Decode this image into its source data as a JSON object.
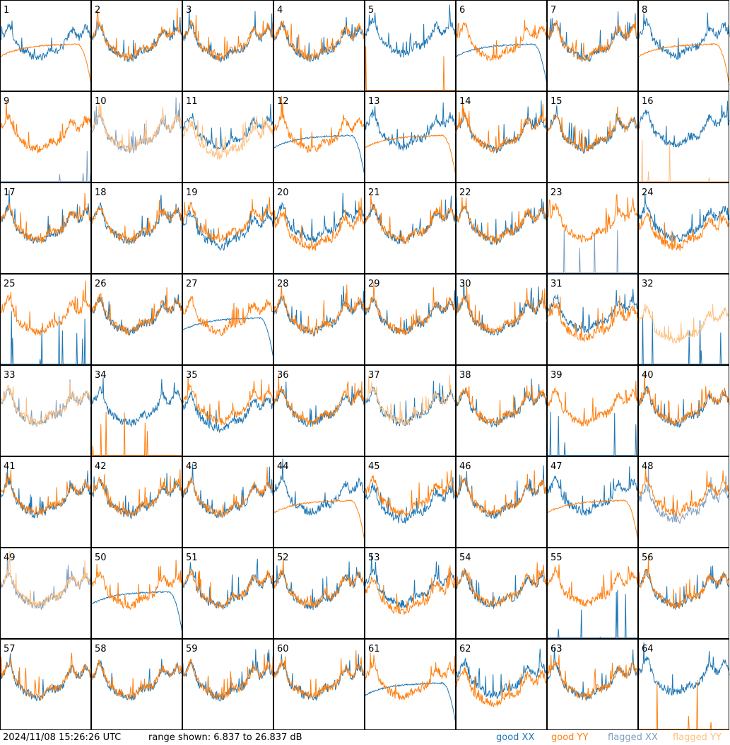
{
  "footer": {
    "timestamp": "2024/11/08 15:26:26 UTC",
    "range_text": "range shown: 6.837 to 26.837 dB",
    "legend": [
      {
        "label": "good XX",
        "color": "#1f77b4"
      },
      {
        "label": "good YY",
        "color": "#ff7f0e"
      },
      {
        "label": "flagged XX",
        "color": "#7f9fbf"
      },
      {
        "label": "flagged YY",
        "color": "#ffbf7f"
      }
    ]
  },
  "chart_data": {
    "type": "line",
    "title": "",
    "ylim": [
      6.837,
      26.837
    ],
    "yunit": "dB",
    "grid": "8x8 small multiples",
    "colors": {
      "good_xx": "#1f77b4",
      "good_yy": "#ff7f0e",
      "flagged_xx": "#7f9fbf",
      "flagged_yy": "#ffbf7f"
    },
    "panels": [
      {
        "label": "1",
        "xx": "good",
        "yy": "good",
        "shape": "xx_noisy_yy_smooth_low"
      },
      {
        "label": "2",
        "xx": "good",
        "yy": "good",
        "shape": "normal"
      },
      {
        "label": "3",
        "xx": "good",
        "yy": "good",
        "shape": "normal"
      },
      {
        "label": "4",
        "xx": "good",
        "yy": "good",
        "shape": "normal"
      },
      {
        "label": "5",
        "xx": "good",
        "yy": "good",
        "shape": "yy_spikes"
      },
      {
        "label": "6",
        "xx": "good",
        "yy": "good",
        "shape": "xx_hump_drop"
      },
      {
        "label": "7",
        "xx": "good",
        "yy": "good",
        "shape": "normal"
      },
      {
        "label": "8",
        "xx": "good",
        "yy": "good",
        "shape": "yy_hump_drop"
      },
      {
        "label": "9",
        "xx": "flagged",
        "yy": "good",
        "shape": "xx_spikes"
      },
      {
        "label": "10",
        "xx": "flagged",
        "yy": "flagged",
        "shape": "normal"
      },
      {
        "label": "11",
        "xx": "good",
        "yy": "flagged",
        "shape": "yy_lower"
      },
      {
        "label": "12",
        "xx": "good",
        "yy": "good",
        "shape": "xx_hump_drop"
      },
      {
        "label": "13",
        "xx": "good",
        "yy": "good",
        "shape": "yy_hump_drop"
      },
      {
        "label": "14",
        "xx": "good",
        "yy": "good",
        "shape": "normal"
      },
      {
        "label": "15",
        "xx": "good",
        "yy": "good",
        "shape": "normal"
      },
      {
        "label": "16",
        "xx": "good",
        "yy": "flagged",
        "shape": "yy_spikes"
      },
      {
        "label": "17",
        "xx": "good",
        "yy": "good",
        "shape": "normal"
      },
      {
        "label": "18",
        "xx": "good",
        "yy": "good",
        "shape": "normal"
      },
      {
        "label": "19",
        "xx": "good",
        "yy": "good",
        "shape": "xx_lower"
      },
      {
        "label": "20",
        "xx": "good",
        "yy": "good",
        "shape": "yy_lower"
      },
      {
        "label": "21",
        "xx": "good",
        "yy": "good",
        "shape": "normal"
      },
      {
        "label": "22",
        "xx": "good",
        "yy": "good",
        "shape": "normal"
      },
      {
        "label": "23",
        "xx": "flagged",
        "yy": "good",
        "shape": "xx_spikes_hump"
      },
      {
        "label": "24",
        "xx": "good",
        "yy": "good",
        "shape": "yy_lower"
      },
      {
        "label": "25",
        "xx": "good",
        "yy": "good",
        "shape": "xx_spikes"
      },
      {
        "label": "26",
        "xx": "good",
        "yy": "good",
        "shape": "normal"
      },
      {
        "label": "27",
        "xx": "good",
        "yy": "good",
        "shape": "xx_hump_drop"
      },
      {
        "label": "28",
        "xx": "good",
        "yy": "good",
        "shape": "normal"
      },
      {
        "label": "29",
        "xx": "good",
        "yy": "good",
        "shape": "normal"
      },
      {
        "label": "30",
        "xx": "good",
        "yy": "good",
        "shape": "normal"
      },
      {
        "label": "31",
        "xx": "good",
        "yy": "good",
        "shape": "yy_lower"
      },
      {
        "label": "32",
        "xx": "good",
        "yy": "flagged",
        "shape": "flagged_yy_wild"
      },
      {
        "label": "33",
        "xx": "flagged",
        "yy": "flagged",
        "shape": "normal"
      },
      {
        "label": "34",
        "xx": "good",
        "yy": "good",
        "shape": "yy_spikes_low"
      },
      {
        "label": "35",
        "xx": "good",
        "yy": "good",
        "shape": "xx_lower"
      },
      {
        "label": "36",
        "xx": "good",
        "yy": "good",
        "shape": "normal"
      },
      {
        "label": "37",
        "xx": "good",
        "yy": "flagged",
        "shape": "normal"
      },
      {
        "label": "38",
        "xx": "good",
        "yy": "good",
        "shape": "normal"
      },
      {
        "label": "39",
        "xx": "good",
        "yy": "good",
        "shape": "xx_spikes"
      },
      {
        "label": "40",
        "xx": "good",
        "yy": "good",
        "shape": "normal"
      },
      {
        "label": "41",
        "xx": "good",
        "yy": "good",
        "shape": "normal"
      },
      {
        "label": "42",
        "xx": "good",
        "yy": "good",
        "shape": "normal"
      },
      {
        "label": "43",
        "xx": "good",
        "yy": "good",
        "shape": "normal"
      },
      {
        "label": "44",
        "xx": "good",
        "yy": "good",
        "shape": "yy_hump_drop"
      },
      {
        "label": "45",
        "xx": "good",
        "yy": "good",
        "shape": "xx_lower"
      },
      {
        "label": "46",
        "xx": "good",
        "yy": "good",
        "shape": "normal"
      },
      {
        "label": "47",
        "xx": "good",
        "yy": "good",
        "shape": "yy_hump_drop"
      },
      {
        "label": "48",
        "xx": "flagged",
        "yy": "good",
        "shape": "xx_lower"
      },
      {
        "label": "49",
        "xx": "flagged",
        "yy": "flagged",
        "shape": "normal"
      },
      {
        "label": "50",
        "xx": "good",
        "yy": "good",
        "shape": "xx_hump_drop"
      },
      {
        "label": "51",
        "xx": "good",
        "yy": "good",
        "shape": "normal"
      },
      {
        "label": "52",
        "xx": "good",
        "yy": "good",
        "shape": "normal"
      },
      {
        "label": "53",
        "xx": "good",
        "yy": "good",
        "shape": "yy_lower"
      },
      {
        "label": "54",
        "xx": "good",
        "yy": "good",
        "shape": "normal"
      },
      {
        "label": "55",
        "xx": "good",
        "yy": "good",
        "shape": "xx_spikes_hump"
      },
      {
        "label": "56",
        "xx": "good",
        "yy": "good",
        "shape": "normal"
      },
      {
        "label": "57",
        "xx": "good",
        "yy": "good",
        "shape": "normal"
      },
      {
        "label": "58",
        "xx": "good",
        "yy": "good",
        "shape": "normal"
      },
      {
        "label": "59",
        "xx": "good",
        "yy": "good",
        "shape": "normal"
      },
      {
        "label": "60",
        "xx": "good",
        "yy": "good",
        "shape": "normal"
      },
      {
        "label": "61",
        "xx": "good",
        "yy": "good",
        "shape": "xx_hump_drop"
      },
      {
        "label": "62",
        "xx": "good",
        "yy": "good",
        "shape": "yy_lower"
      },
      {
        "label": "63",
        "xx": "good",
        "yy": "good",
        "shape": "normal"
      },
      {
        "label": "64",
        "xx": "good",
        "yy": "good",
        "shape": "yy_spikes"
      }
    ]
  }
}
